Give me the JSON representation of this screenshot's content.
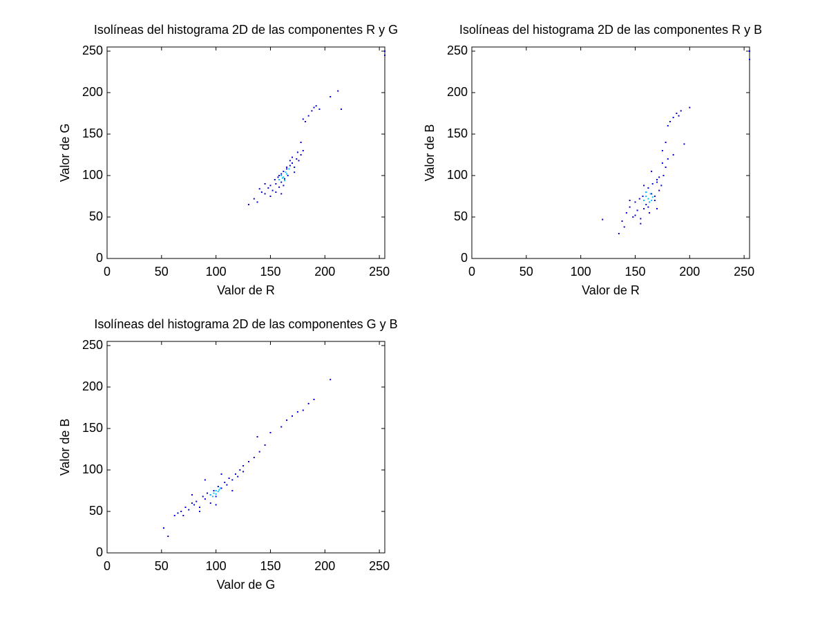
{
  "chart_data": [
    {
      "type": "scatter",
      "title": "Isolíneas del histograma 2D de las componentes R y G",
      "x_label": "Valor de R",
      "y_label": "Valor de G",
      "xlim": [
        0,
        255
      ],
      "ylim": [
        0,
        255
      ],
      "xticks": [
        0,
        50,
        100,
        150,
        200,
        250
      ],
      "yticks": [
        0,
        50,
        100,
        150,
        200,
        250
      ],
      "series": [
        {
          "color": "#0000cd",
          "x": [
            130,
            135,
            138,
            142,
            145,
            148,
            150,
            152,
            154,
            155,
            157,
            158,
            160,
            160,
            162,
            163,
            165,
            166,
            168,
            170,
            172,
            174,
            176,
            178,
            180,
            150,
            155,
            158,
            162,
            168,
            172,
            175,
            145,
            140,
            165,
            170,
            178,
            182,
            185,
            188,
            190,
            192,
            180,
            195,
            205,
            212,
            215,
            255,
            255,
            160
          ],
          "values": [
            65,
            72,
            68,
            80,
            78,
            85,
            88,
            82,
            95,
            90,
            98,
            86,
            102,
            92,
            105,
            96,
            108,
            100,
            112,
            115,
            110,
            120,
            118,
            125,
            130,
            75,
            80,
            100,
            88,
            118,
            104,
            128,
            90,
            84,
            110,
            122,
            140,
            165,
            172,
            178,
            182,
            184,
            168,
            180,
            195,
            202,
            180,
            250,
            245,
            78
          ]
        },
        {
          "color": "#00bfff",
          "x": [
            158,
            160,
            162,
            164,
            165,
            167,
            163,
            161
          ],
          "values": [
            95,
            100,
            98,
            104,
            102,
            108,
            94,
            97
          ]
        }
      ]
    },
    {
      "type": "scatter",
      "title": "Isolíneas del histograma 2D de las componentes R y B",
      "x_label": "Valor de R",
      "y_label": "Valor de B",
      "xlim": [
        0,
        255
      ],
      "ylim": [
        0,
        255
      ],
      "xticks": [
        0,
        50,
        100,
        150,
        200,
        250
      ],
      "yticks": [
        0,
        50,
        100,
        150,
        200,
        250
      ],
      "series": [
        {
          "color": "#0000cd",
          "x": [
            120,
            135,
            138,
            142,
            145,
            148,
            150,
            152,
            154,
            155,
            157,
            158,
            160,
            160,
            162,
            163,
            165,
            166,
            168,
            170,
            172,
            174,
            176,
            178,
            180,
            150,
            155,
            158,
            162,
            168,
            172,
            175,
            145,
            140,
            165,
            170,
            178,
            182,
            185,
            188,
            190,
            192,
            180,
            195,
            200,
            185,
            170,
            255,
            255,
            175
          ],
          "values": [
            47,
            30,
            45,
            55,
            62,
            50,
            68,
            58,
            72,
            48,
            75,
            60,
            80,
            65,
            85,
            55,
            78,
            90,
            70,
            95,
            82,
            88,
            100,
            110,
            120,
            52,
            42,
            88,
            62,
            75,
            98,
            130,
            70,
            38,
            105,
            60,
            140,
            165,
            170,
            175,
            172,
            178,
            160,
            138,
            182,
            125,
            92,
            250,
            240,
            115
          ]
        },
        {
          "color": "#00bfff",
          "x": [
            158,
            160,
            162,
            164,
            166,
            163,
            160,
            165
          ],
          "values": [
            70,
            75,
            72,
            78,
            74,
            68,
            80,
            70
          ]
        }
      ]
    },
    {
      "type": "scatter",
      "title": "Isolíneas del histograma 2D de las componentes G y B",
      "x_label": "Valor de G",
      "y_label": "Valor de B",
      "xlim": [
        0,
        255
      ],
      "ylim": [
        0,
        255
      ],
      "xticks": [
        0,
        50,
        100,
        150,
        200,
        250
      ],
      "yticks": [
        0,
        50,
        100,
        150,
        200,
        250
      ],
      "series": [
        {
          "color": "#0000cd",
          "x": [
            52,
            56,
            62,
            65,
            68,
            70,
            72,
            75,
            78,
            80,
            82,
            85,
            88,
            90,
            92,
            95,
            98,
            100,
            102,
            105,
            108,
            110,
            112,
            115,
            118,
            120,
            122,
            125,
            130,
            135,
            140,
            145,
            150,
            160,
            165,
            170,
            175,
            180,
            185,
            190,
            205,
            78,
            85,
            95,
            105,
            115,
            90,
            100,
            125,
            138
          ],
          "values": [
            30,
            20,
            45,
            48,
            50,
            45,
            55,
            52,
            60,
            58,
            62,
            55,
            68,
            65,
            72,
            70,
            75,
            68,
            80,
            78,
            85,
            82,
            90,
            88,
            95,
            92,
            100,
            98,
            110,
            115,
            122,
            130,
            145,
            152,
            160,
            165,
            170,
            172,
            180,
            185,
            209,
            70,
            50,
            60,
            95,
            75,
            88,
            58,
            105,
            140
          ]
        },
        {
          "color": "#00bfff",
          "x": [
            95,
            98,
            100,
            102,
            104,
            97,
            100,
            103
          ],
          "values": [
            70,
            72,
            75,
            74,
            78,
            68,
            71,
            76
          ]
        }
      ]
    }
  ]
}
